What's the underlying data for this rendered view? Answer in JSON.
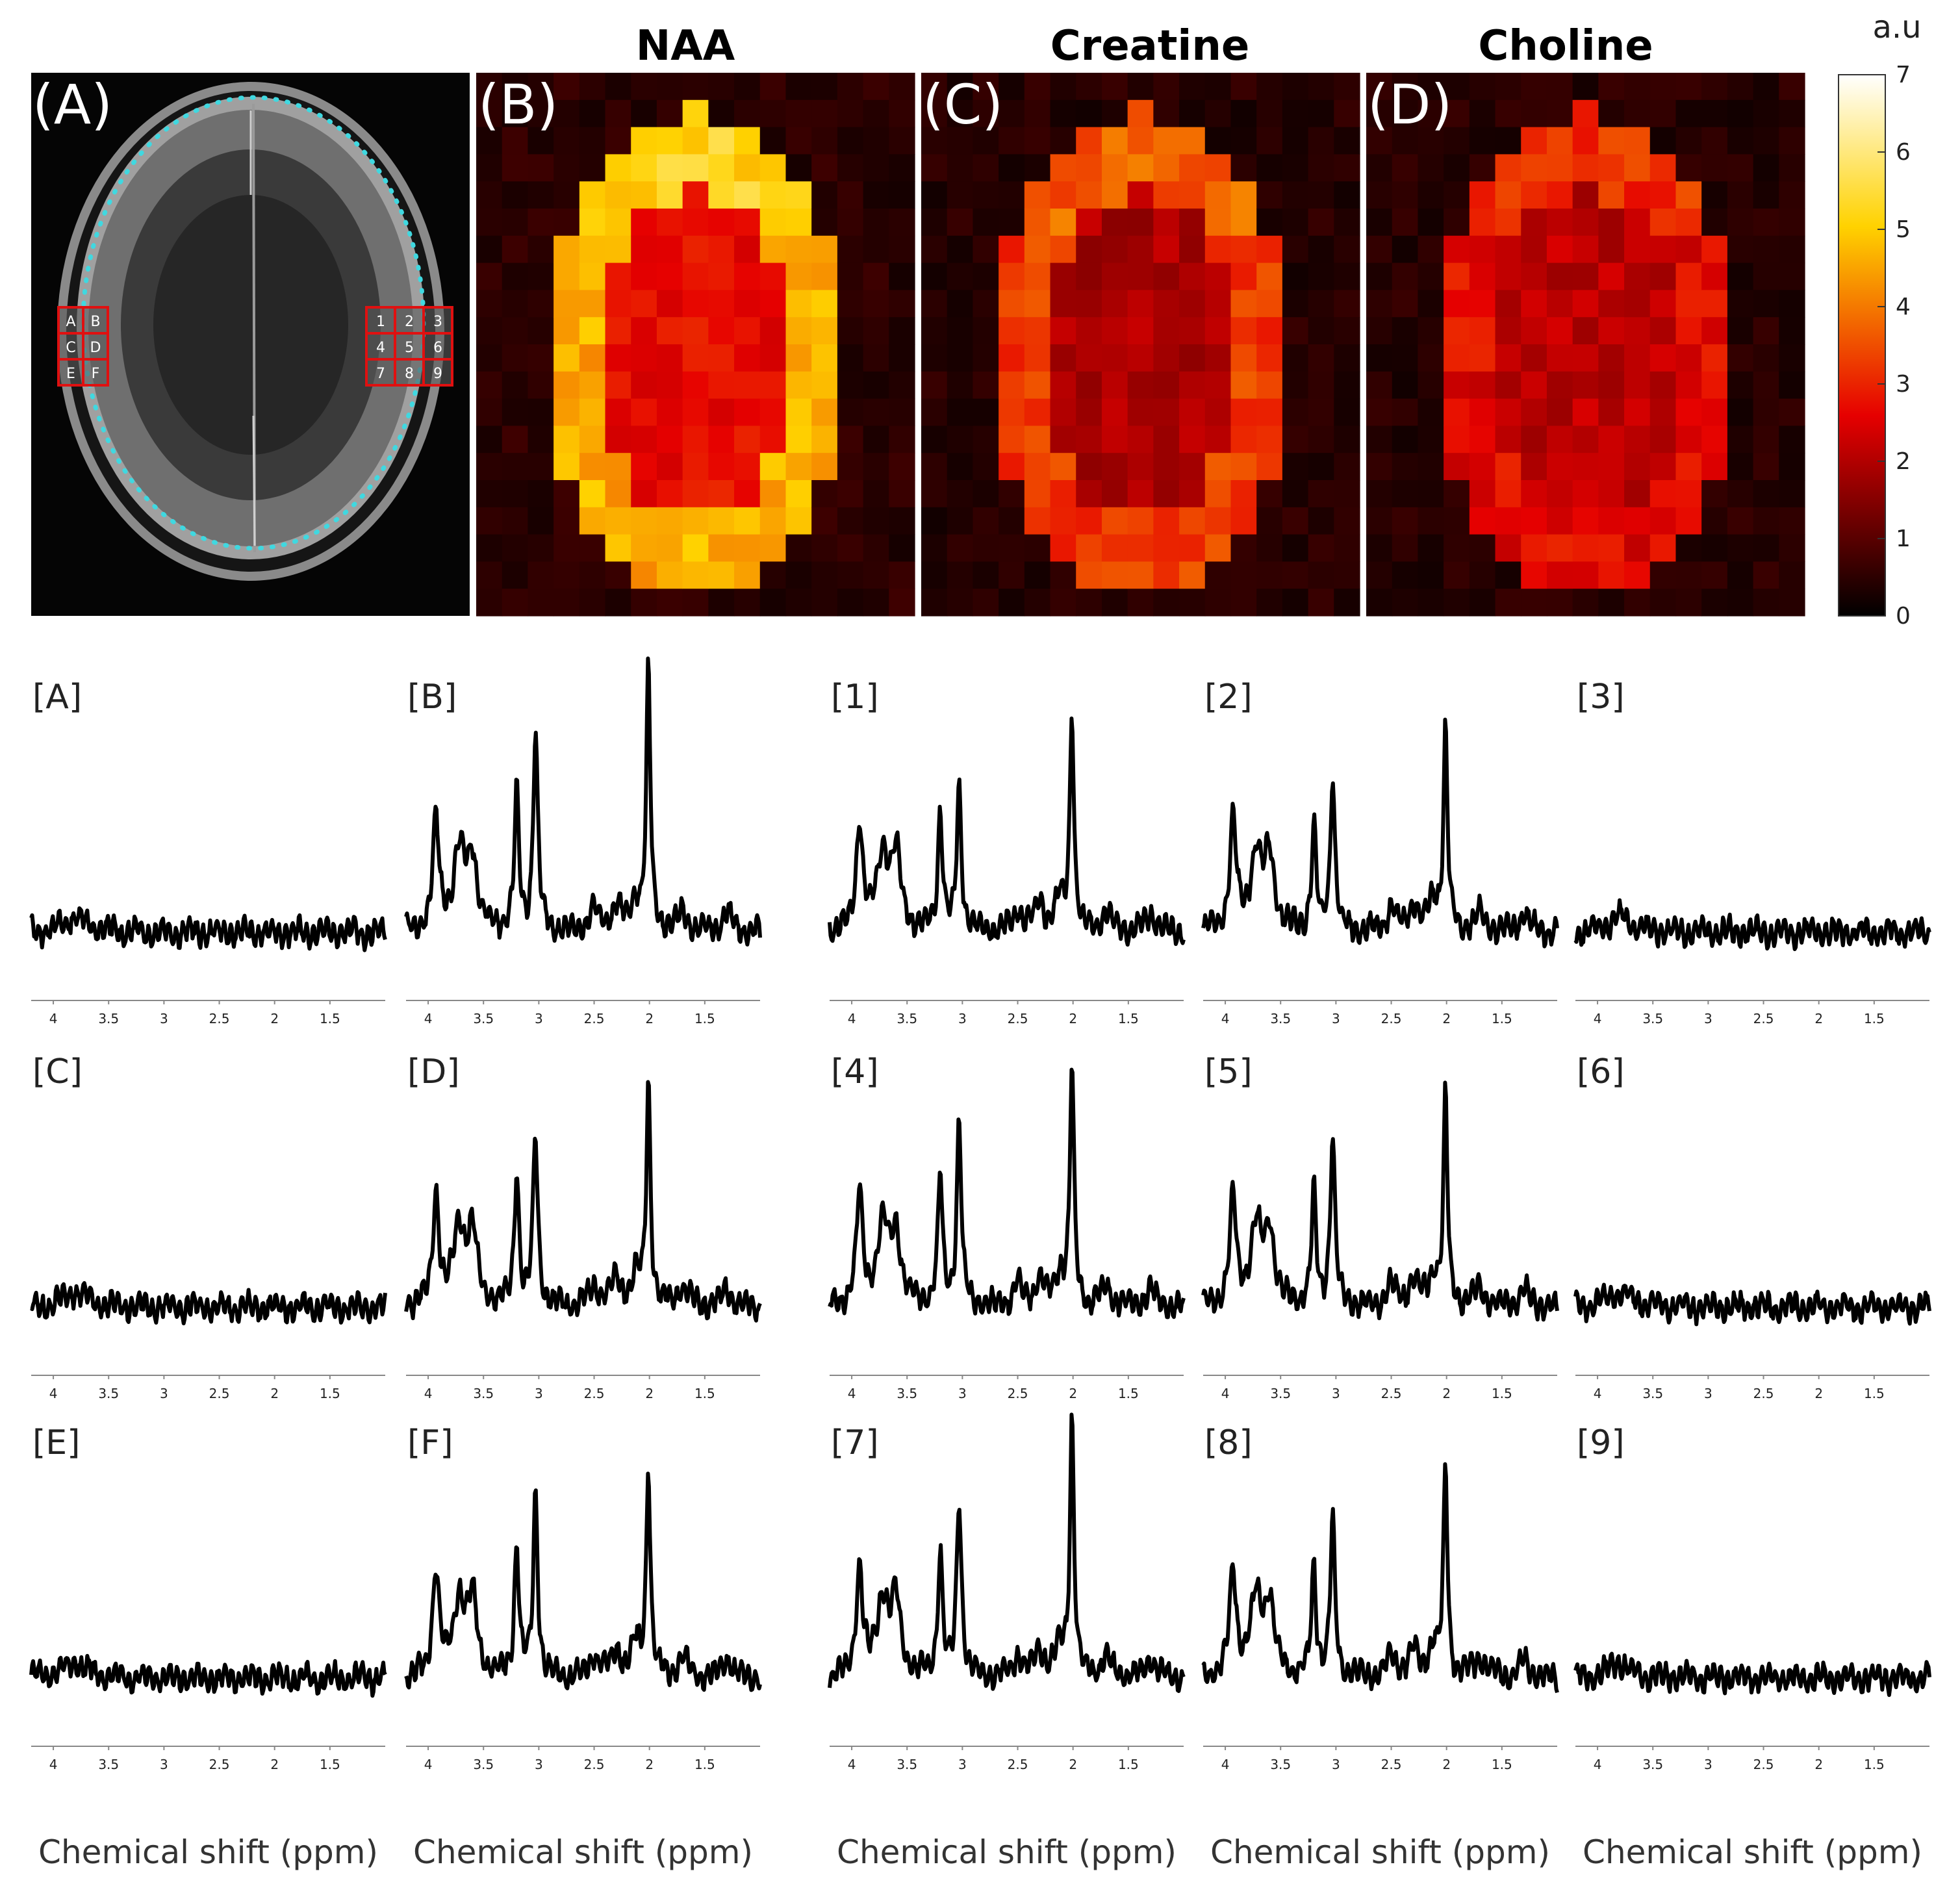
{
  "figure": {
    "map_titles": [
      "NAA",
      "Creatine",
      "Choline"
    ],
    "panel_labels": [
      "(A)",
      "(B)",
      "(C)",
      "(D)"
    ],
    "colorbar": {
      "unit": "a.u",
      "ticks": [
        "0",
        "1",
        "2",
        "3",
        "4",
        "5",
        "6",
        "7"
      ],
      "range": [
        0,
        7
      ],
      "colormap": "hot"
    },
    "voxel_grid_left": [
      "A",
      "B",
      "C",
      "D",
      "E",
      "F"
    ],
    "voxel_grid_right": [
      "1",
      "2",
      "3",
      "4",
      "5",
      "6",
      "7",
      "8",
      "9"
    ],
    "colors": {
      "roi_dots": "#40d8e0",
      "voxel_box": "#e01010",
      "spectrum_line": "#000000"
    },
    "spectra_rows": [
      [
        "[A]",
        "[B]",
        "[1]",
        "[2]",
        "[3]"
      ],
      [
        "[C]",
        "[D]",
        "[4]",
        "[5]",
        "[6]"
      ],
      [
        "[E]",
        "[F]",
        "[7]",
        "[8]",
        "[9]"
      ]
    ],
    "x_ticks": [
      "4",
      "3.5",
      "3",
      "2.5",
      "2",
      "1.5"
    ],
    "x_axis_label": "Chemical shift (ppm)"
  },
  "chart_data": {
    "type": "line",
    "xlabel": "Chemical shift (ppm)",
    "xlim": [
      4.2,
      1.0
    ],
    "x_ticks": [
      4,
      3.5,
      3,
      2.5,
      2,
      1.5
    ],
    "peaks_ppm": {
      "Cho": 3.2,
      "Cr": 3.03,
      "NAA": 2.01
    },
    "series": [
      {
        "name": "[A]",
        "values": {
          "noise_only": true
        }
      },
      {
        "name": "[B]",
        "values": {
          "Cho": 0.52,
          "Cr": 0.76,
          "NAA": 1.0
        }
      },
      {
        "name": "[1]",
        "values": {
          "Cho": 0.46,
          "Cr": 0.55,
          "NAA": 0.84
        }
      },
      {
        "name": "[2]",
        "values": {
          "Cho": 0.4,
          "Cr": 0.6,
          "NAA": 0.76
        }
      },
      {
        "name": "[3]",
        "values": {
          "noise_only": true
        }
      },
      {
        "name": "[C]",
        "values": {
          "noise_only": true
        }
      },
      {
        "name": "[D]",
        "values": {
          "Cho": 0.52,
          "Cr": 0.66,
          "NAA": 0.86
        }
      },
      {
        "name": "[4]",
        "values": {
          "Cho": 0.5,
          "Cr": 0.7,
          "NAA": 0.92
        }
      },
      {
        "name": "[5]",
        "values": {
          "Cho": 0.43,
          "Cr": 0.66,
          "NAA": 0.8
        }
      },
      {
        "name": "[6]",
        "values": {
          "noise_only": true
        }
      },
      {
        "name": "[E]",
        "values": {
          "noise_only": true
        }
      },
      {
        "name": "[F]",
        "values": {
          "Cho": 0.5,
          "Cr": 0.7,
          "NAA": 0.82
        }
      },
      {
        "name": "[7]",
        "values": {
          "Cho": 0.48,
          "Cr": 0.7,
          "NAA": 1.0
        }
      },
      {
        "name": "[8]",
        "values": {
          "Cho": 0.42,
          "Cr": 0.6,
          "NAA": 0.8
        }
      },
      {
        "name": "[9]",
        "values": {
          "noise_only": true
        }
      }
    ]
  }
}
